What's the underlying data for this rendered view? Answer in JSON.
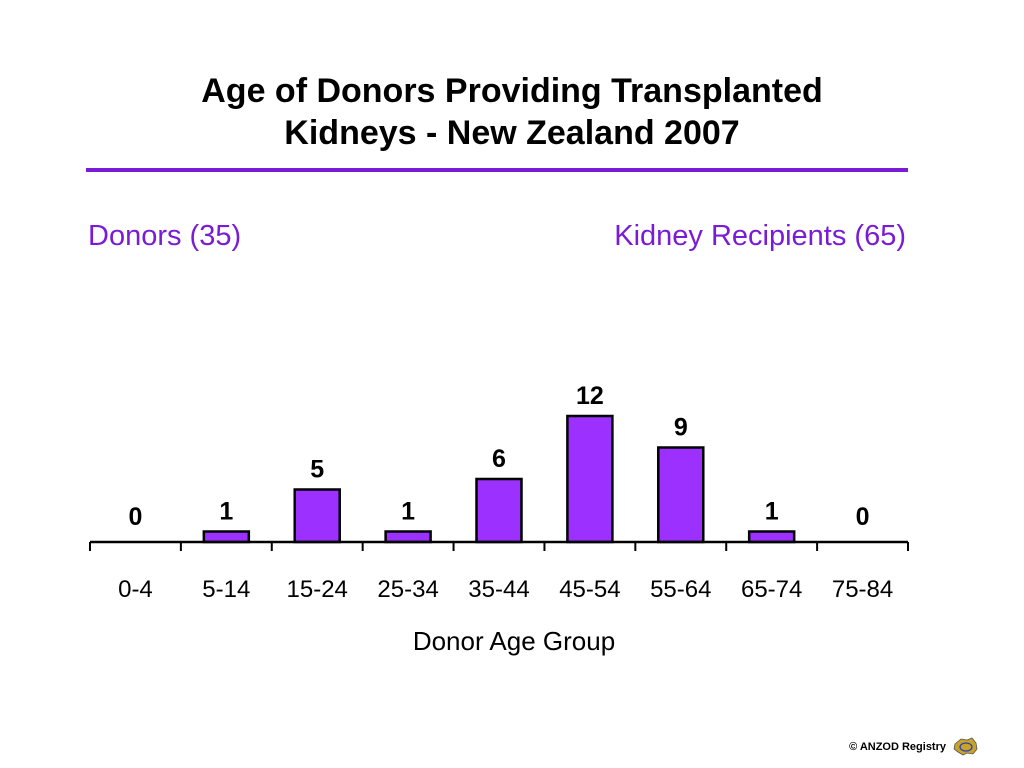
{
  "slide": {
    "title_line1": "Age of Donors Providing Transplanted",
    "title_line2": "Kidneys  -  New Zealand 2007",
    "subhead_left": "Donors (35)",
    "subhead_right": "Kidney Recipients (65)",
    "footer": "© ANZOD Registry",
    "accent_color": "#7a1cd6",
    "bar_color": "#9b30ff"
  },
  "chart_data": {
    "type": "bar",
    "categories": [
      "0-4",
      "5-14",
      "15-24",
      "25-34",
      "35-44",
      "45-54",
      "55-64",
      "65-74",
      "75-84"
    ],
    "values": [
      0,
      1,
      5,
      1,
      6,
      12,
      9,
      1,
      0
    ],
    "data_labels": [
      "0",
      "1",
      "5",
      "1",
      "6",
      "12",
      "9",
      "1",
      "0"
    ],
    "xlabel": "Donor  Age  Group",
    "ylabel": "",
    "ylim": [
      0,
      12
    ],
    "grid": false,
    "legend": "none"
  }
}
